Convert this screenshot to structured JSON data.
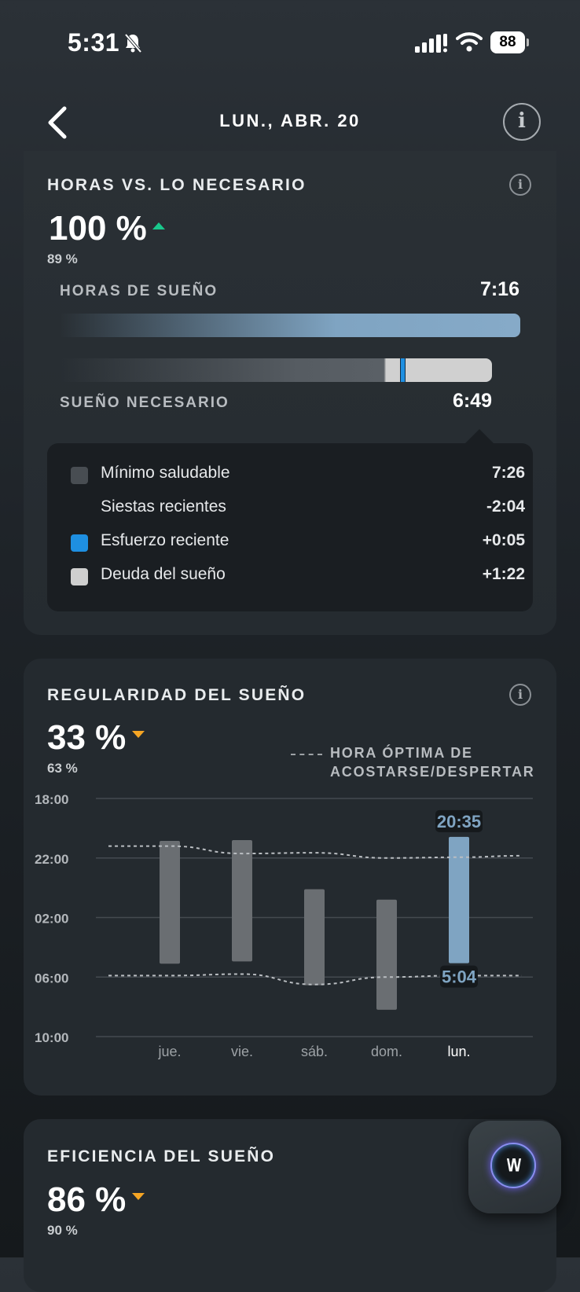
{
  "status_bar": {
    "time": "5:31",
    "battery": "88"
  },
  "header": {
    "title": "LUN., ABR. 20"
  },
  "hours_card": {
    "title": "HORAS VS. LO NECESARIO",
    "percent": "100 %",
    "previous_percent": "89 %",
    "sleep_hours_label": "HORAS DE SUEÑO",
    "sleep_hours_value": "7:16",
    "sleep_needed_label": "SUEÑO NECESARIO",
    "sleep_needed_value": "6:49",
    "breakdown": [
      {
        "label": "Mínimo saludable",
        "value": "7:26",
        "color": "#484d52"
      },
      {
        "label": "Siestas recientes",
        "value": "-2:04",
        "color": ""
      },
      {
        "label": "Esfuerzo reciente",
        "value": "+0:05",
        "color": "#1e8fe1"
      },
      {
        "label": "Deuda del sueño",
        "value": "+1:22",
        "color": "#cfcfcf"
      }
    ]
  },
  "regularity_card": {
    "title": "REGULARIDAD DEL SUEÑO",
    "percent": "33 %",
    "previous_percent": "63 %",
    "optimal_legend_line1": "HORA ÓPTIMA DE",
    "optimal_legend_line2": "ACOSTARSE/DESPERTAR"
  },
  "chart_data": {
    "type": "bar",
    "y_tick_labels": [
      "18:00",
      "22:00",
      "02:00",
      "06:00",
      "10:00"
    ],
    "ylim_hours_since_18": [
      0,
      16
    ],
    "categories": [
      "jue.",
      "vie.",
      "sáb.",
      "dom.",
      "lun."
    ],
    "highlight_index": 4,
    "bars": [
      {
        "start": 2.85,
        "end": 11.1
      },
      {
        "start": 2.8,
        "end": 10.95
      },
      {
        "start": 6.1,
        "end": 12.55
      },
      {
        "start": 6.8,
        "end": 14.2
      },
      {
        "start": 2.58,
        "end": 11.07
      }
    ],
    "bar_labels": {
      "start": "20:35",
      "end": "5:04"
    },
    "optimal_bedtime": [
      3.2,
      3.2,
      3.7,
      3.65,
      4.0,
      3.95,
      3.85
    ],
    "optimal_wake": [
      11.9,
      11.9,
      11.8,
      12.5,
      12.0,
      11.9,
      11.9
    ],
    "colors": {
      "bar": "#6a6e72",
      "highlight": "#7fa4c2"
    }
  },
  "efficiency_card": {
    "title": "EFICIENCIA DEL SUEÑO",
    "percent": "86 %",
    "previous_percent": "90 %"
  }
}
